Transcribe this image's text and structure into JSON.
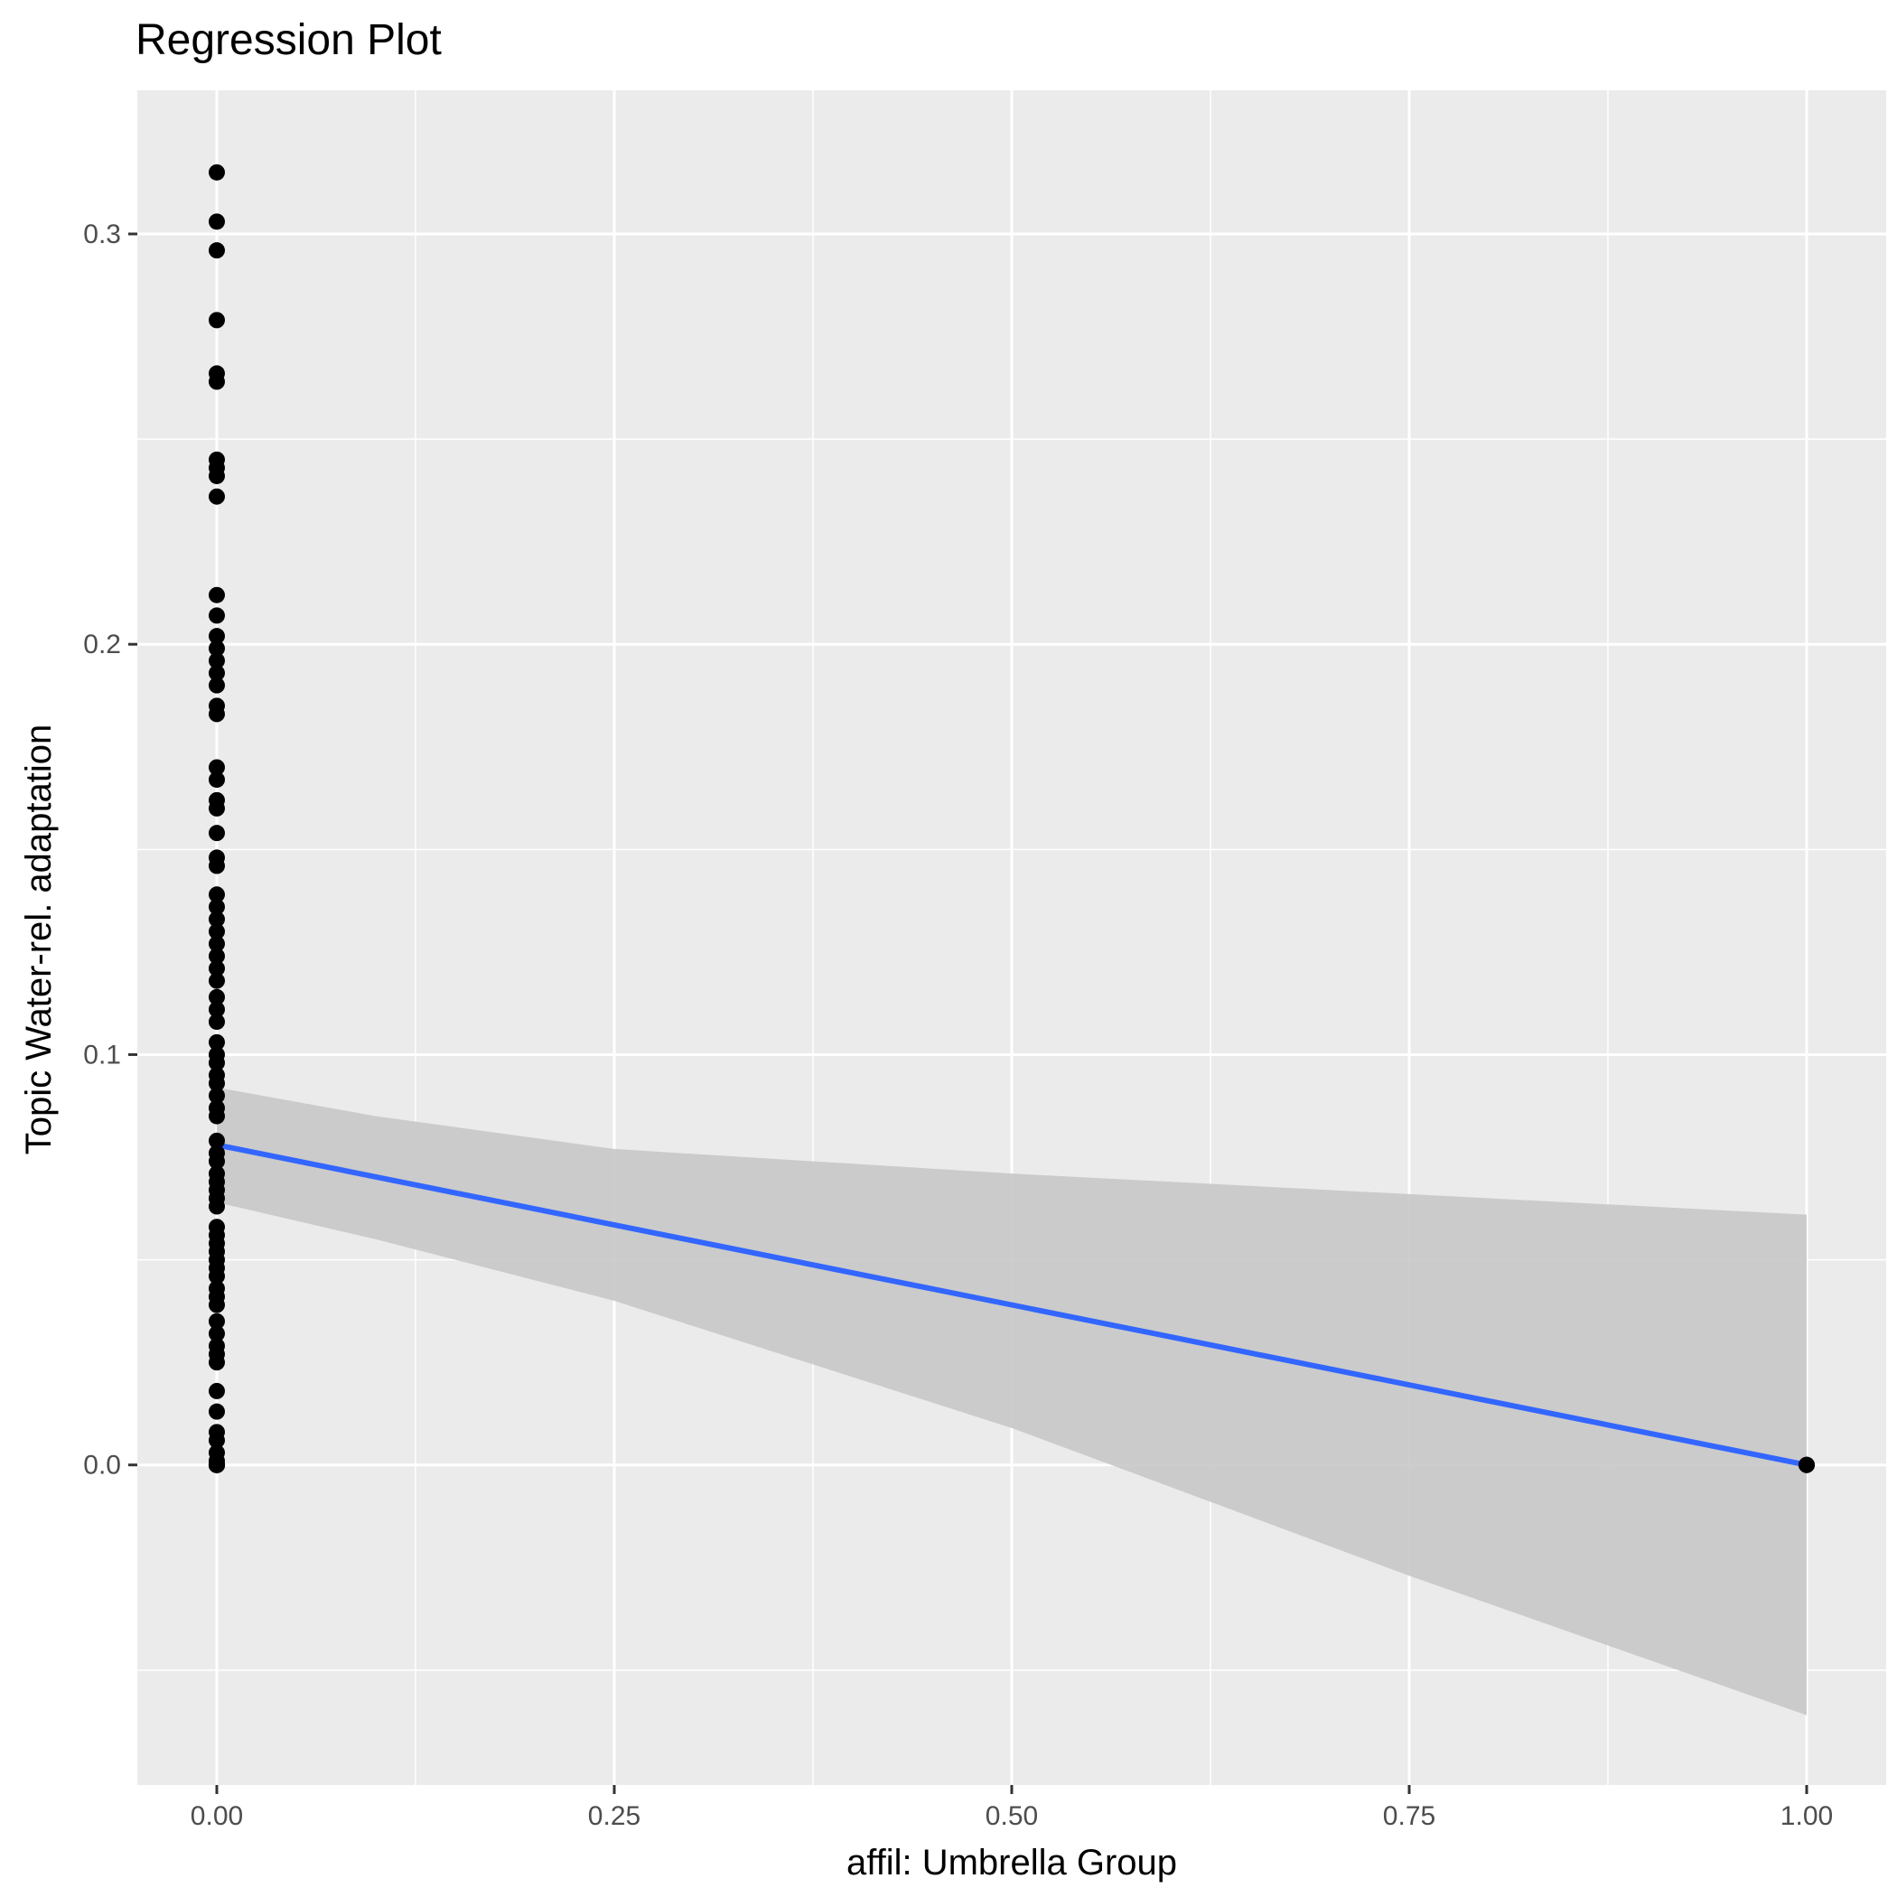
{
  "chart_data": {
    "type": "scatter",
    "title": "Regression Plot",
    "xlabel": "affil: Umbrella Group",
    "ylabel": "Topic Water-rel. adaptation",
    "xlim": [
      -0.05,
      1.05
    ],
    "ylim": [
      -0.078,
      0.335
    ],
    "x_ticks": [
      0.0,
      0.25,
      0.5,
      0.75,
      1.0
    ],
    "x_tick_labels": [
      "0.00",
      "0.25",
      "0.50",
      "0.75",
      "1.00"
    ],
    "y_ticks": [
      0.0,
      0.1,
      0.2,
      0.3
    ],
    "y_tick_labels": [
      "0.0",
      "0.1",
      "0.2",
      "0.3"
    ],
    "grid": true,
    "colors": {
      "panel_background": "#ebebeb",
      "grid": "#ffffff",
      "points": "#000000",
      "fit_line": "#3366ff",
      "confidence_band": "#c8c8c8"
    },
    "points": {
      "x": [
        0,
        0,
        0,
        0,
        0,
        0,
        0,
        0,
        0,
        0,
        0,
        0,
        0,
        0,
        0,
        0,
        0,
        0,
        0,
        0,
        0,
        0,
        0,
        0,
        0,
        0,
        0,
        0,
        0,
        0,
        0,
        0,
        0,
        0,
        0,
        0,
        0,
        0,
        0,
        0,
        0,
        0,
        0,
        0,
        0,
        0,
        0,
        0,
        0,
        0,
        0,
        0,
        0,
        0,
        0,
        0,
        0,
        0,
        0,
        0,
        0,
        0,
        0,
        0,
        0,
        0,
        0,
        0,
        0,
        0,
        0,
        0,
        0,
        0,
        0,
        0,
        0,
        0,
        0,
        0,
        0,
        0,
        0,
        0,
        0,
        0,
        0,
        0,
        0,
        0,
        0,
        0,
        0,
        0,
        0,
        0,
        0,
        0,
        0,
        0,
        0,
        0,
        1,
        1,
        1
      ],
      "y": [
        0.315,
        0.303,
        0.296,
        0.279,
        0.266,
        0.264,
        0.245,
        0.243,
        0.241,
        0.236,
        0.212,
        0.207,
        0.202,
        0.199,
        0.196,
        0.193,
        0.19,
        0.185,
        0.183,
        0.17,
        0.167,
        0.162,
        0.16,
        0.154,
        0.148,
        0.146,
        0.139,
        0.136,
        0.133,
        0.13,
        0.127,
        0.124,
        0.121,
        0.118,
        0.114,
        0.111,
        0.108,
        0.103,
        0.1,
        0.098,
        0.095,
        0.093,
        0.09,
        0.087,
        0.085,
        0.079,
        0.076,
        0.074,
        0.071,
        0.069,
        0.067,
        0.065,
        0.063,
        0.058,
        0.056,
        0.054,
        0.052,
        0.05,
        0.048,
        0.046,
        0.043,
        0.041,
        0.039,
        0.035,
        0.032,
        0.029,
        0.027,
        0.025,
        0.018,
        0.013,
        0.008,
        0.006,
        0.003,
        0.001,
        0.0,
        0.0,
        0.0,
        0.0,
        0.0,
        0.0,
        0.0,
        0.0,
        0.0,
        0.0,
        0.0,
        0.0,
        0.0,
        0.0,
        0.0,
        0.0,
        0.0,
        0.0,
        0.0,
        0.0,
        0.0,
        0.0,
        0.0,
        0.0,
        0.0,
        0.0,
        0.0,
        0.0,
        0.0,
        0.0,
        0.0
      ]
    },
    "fit_line": {
      "x": [
        0,
        1
      ],
      "y": [
        0.078,
        0.0
      ]
    },
    "confidence_band": {
      "x": [
        0.0,
        0.1,
        0.25,
        0.5,
        0.75,
        1.0
      ],
      "upper": [
        0.092,
        0.085,
        0.077,
        0.071,
        0.066,
        0.061
      ],
      "lower": [
        0.064,
        0.055,
        0.04,
        0.009,
        -0.027,
        -0.061
      ]
    }
  }
}
